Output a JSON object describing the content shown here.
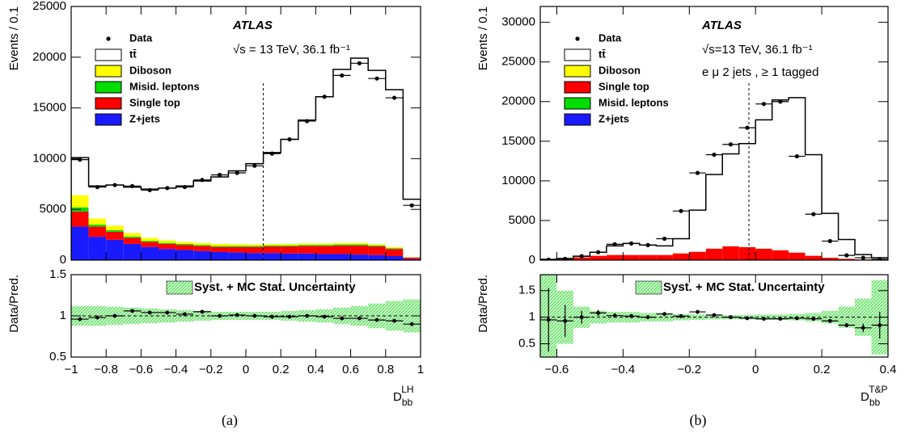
{
  "chart_data": [
    {
      "type": "stacked_histogram",
      "title": "ATLAS",
      "subtitle": "√s = 13 TeV, 36.1 fb⁻¹",
      "y_label": "Events / 0.1",
      "caption": "(a)",
      "bins": [
        -1,
        -0.9,
        -0.8,
        -0.7,
        -0.6,
        -0.5,
        -0.4,
        -0.3,
        -0.2,
        -0.1,
        0,
        0.1,
        0.2,
        0.3,
        0.4,
        0.5,
        0.6,
        0.7,
        0.8,
        0.9,
        1
      ],
      "xlim": [
        -1,
        1
      ],
      "ylim": [
        0,
        25000
      ],
      "yticks": [
        0,
        5000,
        10000,
        15000,
        20000,
        25000
      ],
      "cut": 0.1,
      "data": {
        "name": "Data",
        "values": [
          9900,
          7200,
          7400,
          7300,
          6900,
          7100,
          7200,
          7900,
          8400,
          8600,
          9300,
          10500,
          11900,
          13700,
          16100,
          18200,
          19400,
          17900,
          16000,
          5400
        ]
      },
      "series": [
        {
          "name": "tt̄",
          "color": "#ffffff",
          "values": [
            3700,
            3200,
            4000,
            4530,
            4800,
            5150,
            5500,
            6100,
            6600,
            7220,
            7950,
            9000,
            10300,
            12150,
            14450,
            17100,
            18200,
            17130,
            15520,
            5700
          ]
        },
        {
          "name": "Diboson",
          "color": "#ffff00",
          "values": [
            1200,
            600,
            450,
            350,
            300,
            250,
            200,
            200,
            200,
            180,
            150,
            150,
            150,
            150,
            150,
            150,
            150,
            120,
            100,
            30
          ]
        },
        {
          "name": "Misid. leptons",
          "color": "#00dd00",
          "values": [
            400,
            200,
            150,
            120,
            100,
            100,
            100,
            100,
            100,
            100,
            100,
            100,
            100,
            100,
            100,
            100,
            100,
            100,
            80,
            20
          ]
        },
        {
          "name": "Single top",
          "color": "#ff0000",
          "values": [
            1500,
            1000,
            800,
            600,
            500,
            500,
            500,
            500,
            500,
            550,
            600,
            650,
            700,
            750,
            800,
            850,
            900,
            850,
            700,
            150
          ]
        },
        {
          "name": "Z+jets",
          "color": "#1a1aff",
          "values": [
            3300,
            2300,
            2000,
            1600,
            1300,
            1100,
            1000,
            900,
            800,
            750,
            700,
            700,
            650,
            650,
            600,
            600,
            550,
            500,
            400,
            100
          ]
        }
      ]
    },
    {
      "type": "ratio_histogram",
      "y_label": "Data/Pred.",
      "band_name": "Syst. + MC Stat. Uncertainty",
      "bins": [
        -1,
        -0.9,
        -0.8,
        -0.7,
        -0.6,
        -0.5,
        -0.4,
        -0.3,
        -0.2,
        -0.1,
        0,
        0.1,
        0.2,
        0.3,
        0.4,
        0.5,
        0.6,
        0.7,
        0.8,
        0.9,
        1
      ],
      "xlim": [
        -1,
        1
      ],
      "xticks": [
        {
          "value": -1,
          "label": "−1"
        },
        {
          "value": -0.8,
          "label": "−0.8"
        },
        {
          "value": -0.6,
          "label": "−0.6"
        },
        {
          "value": -0.4,
          "label": "−0.4"
        },
        {
          "value": -0.2,
          "label": "−0.2"
        },
        0,
        0.2,
        0.4,
        0.6,
        0.8,
        1
      ],
      "ylim": [
        0.5,
        1.5
      ],
      "yticks": [
        0.5,
        1,
        1.5
      ],
      "reference_line": 1,
      "values": [
        0.96,
        0.98,
        1.0,
        1.06,
        1.04,
        1.04,
        1.02,
        1.05,
        1.0,
        1.01,
        1.0,
        0.99,
        0.99,
        1.0,
        0.99,
        0.97,
        0.97,
        0.95,
        0.94,
        0.9
      ],
      "errors": [
        0.01,
        0.01,
        0.01,
        0.01,
        0.01,
        0.01,
        0.01,
        0.01,
        0.01,
        0.01,
        0.01,
        0.01,
        0.01,
        0.01,
        0.01,
        0.01,
        0.01,
        0.01,
        0.01,
        0.01
      ],
      "uncertainty": [
        0.12,
        0.12,
        0.11,
        0.1,
        0.09,
        0.08,
        0.07,
        0.06,
        0.05,
        0.05,
        0.05,
        0.05,
        0.06,
        0.07,
        0.08,
        0.1,
        0.12,
        0.15,
        0.18,
        0.2
      ],
      "x_label": {
        "main": "D",
        "sub": "bb",
        "sup": "LH"
      }
    },
    {
      "type": "stacked_histogram",
      "title": "ATLAS",
      "subtitle": "√s=13 TeV, 36.1 fb⁻¹",
      "extra_label": "e μ 2 jets , ≥ 1 tagged",
      "y_label": "Events / 0.1",
      "caption": "(b)",
      "bins": [
        -0.65,
        -0.6,
        -0.55,
        -0.5,
        -0.45,
        -0.4,
        -0.35,
        -0.3,
        -0.25,
        -0.2,
        -0.15,
        -0.1,
        -0.05,
        0,
        0.05,
        0.1,
        0.15,
        0.2,
        0.25,
        0.3,
        0.35,
        0.4
      ],
      "xlim": [
        -0.65,
        0.4
      ],
      "ylim": [
        0,
        32000
      ],
      "yticks": [
        0,
        5000,
        10000,
        15000,
        20000,
        25000,
        30000
      ],
      "cut": -0.02,
      "data": {
        "name": "Data",
        "values": [
          50,
          150,
          500,
          1000,
          2000,
          2100,
          1900,
          2700,
          6200,
          11000,
          13300,
          14600,
          16700,
          19700,
          20000,
          13100,
          5800,
          2400,
          600,
          300,
          100
        ]
      },
      "series": [
        {
          "name": "tt̄",
          "color": "#ffffff",
          "values": [
            10,
            40,
            140,
            440,
            1140,
            1440,
            1240,
            1140,
            1840,
            5240,
            9340,
            11640,
            13040,
            16240,
            18940,
            19540,
            12740,
            5590,
            2420,
            600,
            220
          ]
        },
        {
          "name": "Diboson",
          "color": "#ffff00",
          "values": [
            10,
            10,
            10,
            10,
            10,
            10,
            10,
            10,
            10,
            10,
            10,
            10,
            10,
            10,
            10,
            10,
            10,
            10,
            10,
            10,
            10
          ]
        },
        {
          "name": "Single top",
          "color": "#ff0000",
          "values": [
            30,
            100,
            300,
            500,
            600,
            600,
            600,
            600,
            800,
            1000,
            1400,
            1700,
            1600,
            1400,
            1200,
            900,
            500,
            250,
            120,
            40,
            20
          ]
        },
        {
          "name": "Misid. leptons",
          "color": "#00dd00",
          "values": [
            30,
            30,
            30,
            30,
            30,
            30,
            30,
            30,
            30,
            30,
            30,
            30,
            30,
            30,
            30,
            30,
            30,
            30,
            30,
            30,
            30
          ]
        },
        {
          "name": "Z+jets",
          "color": "#1a1aff",
          "values": [
            20,
            20,
            20,
            20,
            20,
            20,
            20,
            20,
            20,
            20,
            20,
            20,
            20,
            20,
            20,
            20,
            20,
            20,
            20,
            20,
            20
          ]
        }
      ]
    },
    {
      "type": "ratio_histogram",
      "y_label": "Data/Pred.",
      "band_name": "Syst. + MC Stat. Uncertainty",
      "bins": [
        -0.65,
        -0.6,
        -0.55,
        -0.5,
        -0.45,
        -0.4,
        -0.35,
        -0.3,
        -0.25,
        -0.2,
        -0.15,
        -0.1,
        -0.05,
        0,
        0.05,
        0.1,
        0.15,
        0.2,
        0.25,
        0.3,
        0.35,
        0.4
      ],
      "xlim": [
        -0.65,
        0.4
      ],
      "xticks": [
        {
          "value": -0.6,
          "label": "−0.6"
        },
        {
          "value": -0.4,
          "label": "−0.4"
        },
        {
          "value": -0.2,
          "label": "−0.2"
        },
        0,
        0.2,
        0.4
      ],
      "ylim": [
        0.25,
        1.8
      ],
      "yticks": [
        0.5,
        1,
        1.5
      ],
      "reference_line": 1,
      "values": [
        0.95,
        0.93,
        1.0,
        1.08,
        1.03,
        1.02,
        1.0,
        1.06,
        1.02,
        1.1,
        1.04,
        1.0,
        0.98,
        0.97,
        0.97,
        0.98,
        0.97,
        0.93,
        0.85,
        0.8,
        0.85
      ],
      "errors": [
        0.6,
        0.3,
        0.12,
        0.06,
        0.04,
        0.03,
        0.03,
        0.03,
        0.02,
        0.01,
        0.01,
        0.01,
        0.01,
        0.01,
        0.01,
        0.01,
        0.01,
        0.02,
        0.04,
        0.08,
        0.25
      ],
      "uncertainty": [
        0.8,
        0.5,
        0.2,
        0.12,
        0.1,
        0.1,
        0.08,
        0.08,
        0.06,
        0.05,
        0.04,
        0.04,
        0.04,
        0.05,
        0.05,
        0.06,
        0.08,
        0.12,
        0.2,
        0.35,
        0.7
      ],
      "x_label": {
        "main": "D",
        "sub": "bb",
        "sup": "T&P"
      }
    }
  ]
}
